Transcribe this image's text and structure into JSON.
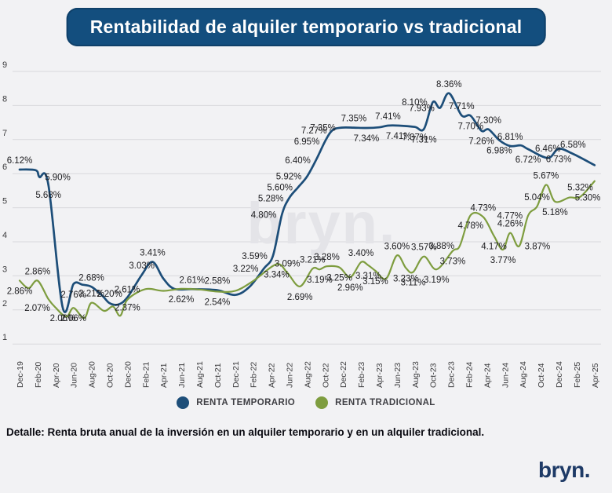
{
  "title": "Rentabilidad de alquiler temporario vs tradicional",
  "footer": {
    "label": "Detalle:",
    "text": " Renta bruta anual de la inversión en un alquiler temporario y en un alquiler tradicional."
  },
  "brand": {
    "logo": "bryn.",
    "watermark": "bryn."
  },
  "legend": [
    {
      "label": "RENTA TEMPORARIO",
      "color": "#1d4e79"
    },
    {
      "label": "RENTA TRADICIONAL",
      "color": "#7e9d3f"
    }
  ],
  "colors": {
    "background": "#f2f2f4",
    "grid": "#d8d8dc",
    "axis_text": "#3c3c3e",
    "data_label": "#1c1c1f",
    "title_bg": "#134e7e",
    "watermark": "#e4e4e8"
  },
  "chart_data": {
    "type": "line",
    "title": "Rentabilidad de alquiler temporario vs tradicional",
    "xlabel": "",
    "ylabel": "",
    "ylim": [
      1,
      9
    ],
    "y_ticks": [
      1,
      2,
      3,
      4,
      5,
      6,
      7,
      8,
      9
    ],
    "grid": "horizontal",
    "legend_position": "bottom",
    "x_ticks": [
      "Dec-19",
      "Feb-20",
      "Apr-20",
      "Jun-20",
      "Aug-20",
      "Oct-20",
      "Dec-20",
      "Feb-21",
      "Apr-21",
      "Jun-21",
      "Aug-21",
      "Oct-21",
      "Dec-21",
      "Feb-22",
      "Apr-22",
      "Jun-22",
      "Aug-22",
      "Oct-22",
      "Dec-22",
      "Feb-23",
      "Apr-23",
      "Jun-23",
      "Aug-23",
      "Oct-23",
      "Dec-23",
      "Feb-24",
      "Apr-24",
      "Jun-24",
      "Aug-24",
      "Oct-24",
      "Dec-24",
      "Feb-25",
      "Apr-25"
    ],
    "series": [
      {
        "name": "RENTA TEMPORARIO",
        "color": "#1d4e79",
        "width": 2.7,
        "points": [
          [
            0,
            6.12,
            "6.12%",
            "a"
          ],
          [
            0.9,
            6.1,
            null,
            null
          ],
          [
            1.1,
            5.9,
            "5.90%",
            "r"
          ],
          [
            1.6,
            5.68,
            "5.68%",
            "b"
          ],
          [
            2.4,
            2.06,
            "2.06%",
            "b"
          ],
          [
            3,
            2.76,
            "2.76%",
            "b"
          ],
          [
            3.5,
            2.74,
            null,
            null
          ],
          [
            4,
            2.68,
            "2.68%",
            "a"
          ],
          [
            4.6,
            2.42,
            null,
            null
          ],
          [
            5,
            2.2,
            "2.20%",
            "a"
          ],
          [
            5.5,
            2.16,
            null,
            null
          ],
          [
            6,
            2.37,
            "2.37%",
            "b"
          ],
          [
            6.8,
            3.03,
            "3.03%",
            "a"
          ],
          [
            7.4,
            3.41,
            "3.41%",
            "a"
          ],
          [
            8,
            2.92,
            null,
            null
          ],
          [
            8.6,
            2.62,
            null,
            null
          ],
          [
            9.6,
            2.61,
            "2.61%",
            "a"
          ],
          [
            11,
            2.58,
            "2.58%",
            "a"
          ],
          [
            12,
            2.44,
            null,
            null
          ],
          [
            12.8,
            2.68,
            null,
            null
          ],
          [
            13.6,
            3.22,
            "3.22%",
            "l"
          ],
          [
            14.1,
            3.59,
            "3.59%",
            "l"
          ],
          [
            14.6,
            4.8,
            "4.80%",
            "l"
          ],
          [
            15,
            5.28,
            "5.28%",
            "l"
          ],
          [
            15.5,
            5.6,
            "5.60%",
            "l"
          ],
          [
            16,
            5.92,
            "5.92%",
            "l"
          ],
          [
            16.5,
            6.4,
            "6.40%",
            "l"
          ],
          [
            17,
            6.95,
            "6.95%",
            "l"
          ],
          [
            17.4,
            7.27,
            "7.27%",
            "l"
          ],
          [
            17.9,
            7.35,
            "7.35%",
            "l"
          ],
          [
            18.6,
            7.35,
            "7.35%",
            "a"
          ],
          [
            19.3,
            7.34,
            "7.34%",
            "b"
          ],
          [
            20,
            7.36,
            null,
            null
          ],
          [
            20.5,
            7.41,
            "7.41%",
            "a"
          ],
          [
            21.1,
            7.41,
            "7.41%",
            "b"
          ],
          [
            22,
            7.37,
            "7.37%",
            "b"
          ],
          [
            22.5,
            7.31,
            "7.31%",
            "b"
          ],
          [
            23,
            8.1,
            "8.10%",
            "l"
          ],
          [
            23.4,
            7.93,
            "7.93%",
            "l"
          ],
          [
            23.9,
            8.36,
            "8.36%",
            "a"
          ],
          [
            24.6,
            7.71,
            "7.71%",
            "a"
          ],
          [
            25.1,
            7.7,
            "7.70%",
            "b"
          ],
          [
            25.7,
            7.26,
            "7.26%",
            "b"
          ],
          [
            26.1,
            7.3,
            "7.30%",
            "a"
          ],
          [
            26.7,
            6.98,
            "6.98%",
            "b"
          ],
          [
            27.3,
            6.81,
            "6.81%",
            "a"
          ],
          [
            27.9,
            6.83,
            null,
            null
          ],
          [
            28.3,
            6.72,
            "6.72%",
            "b"
          ],
          [
            29.4,
            6.46,
            "6.46%",
            "a"
          ],
          [
            30,
            6.73,
            "6.73%",
            "b"
          ],
          [
            30.8,
            6.58,
            "6.58%",
            "a"
          ],
          [
            32,
            6.25,
            null,
            null
          ]
        ]
      },
      {
        "name": "RENTA TRADICIONAL",
        "color": "#7e9d3f",
        "width": 2.2,
        "points": [
          [
            0,
            2.86,
            "2.86%",
            "b"
          ],
          [
            0.5,
            2.64,
            null,
            null
          ],
          [
            1,
            2.86,
            "2.86%",
            "a"
          ],
          [
            1.6,
            2.32,
            null,
            null
          ],
          [
            2,
            2.07,
            "2.07%",
            "l"
          ],
          [
            2.6,
            1.8,
            null,
            null
          ],
          [
            3,
            2.06,
            "2.06%",
            "b"
          ],
          [
            3.6,
            1.76,
            null,
            null
          ],
          [
            4,
            2.21,
            "2.21%",
            "a"
          ],
          [
            4.7,
            1.97,
            null,
            null
          ],
          [
            5.2,
            2.1,
            null,
            null
          ],
          [
            5.6,
            1.83,
            null,
            null
          ],
          [
            6,
            2.3,
            null,
            null
          ],
          [
            7,
            2.61,
            "2.61%",
            "l"
          ],
          [
            8,
            2.56,
            null,
            null
          ],
          [
            9,
            2.62,
            "2.62%",
            "b"
          ],
          [
            10,
            2.6,
            null,
            null
          ],
          [
            11,
            2.54,
            "2.54%",
            "b"
          ],
          [
            12,
            2.56,
            null,
            null
          ],
          [
            13,
            2.85,
            null,
            null
          ],
          [
            14.3,
            3.34,
            "3.34%",
            "b"
          ],
          [
            14.9,
            3.09,
            "3.09%",
            "a"
          ],
          [
            15.6,
            2.69,
            "2.69%",
            "b"
          ],
          [
            16.3,
            3.21,
            "3.21%",
            "a"
          ],
          [
            16.7,
            3.19,
            "3.19%",
            "b"
          ],
          [
            17.1,
            3.28,
            "3.28%",
            "a"
          ],
          [
            17.8,
            3.25,
            "3.25%",
            "b"
          ],
          [
            18.4,
            2.96,
            "2.96%",
            "b"
          ],
          [
            19,
            3.4,
            "3.40%",
            "a"
          ],
          [
            19.4,
            3.31,
            "3.31%",
            "b"
          ],
          [
            19.8,
            3.15,
            "3.15%",
            "b"
          ],
          [
            20.4,
            2.92,
            null,
            null
          ],
          [
            21,
            3.6,
            "3.60%",
            "a"
          ],
          [
            21.5,
            3.23,
            "3.23%",
            "b"
          ],
          [
            21.9,
            3.11,
            "3.11%",
            "b"
          ],
          [
            22.5,
            3.57,
            "3.57%",
            "a"
          ],
          [
            23.2,
            3.19,
            "3.19%",
            "b"
          ],
          [
            24.1,
            3.73,
            "3.73%",
            "b"
          ],
          [
            24.5,
            3.88,
            "3.88%",
            "l"
          ],
          [
            25.1,
            4.78,
            "4.78%",
            "b"
          ],
          [
            25.8,
            4.73,
            "4.73%",
            "a"
          ],
          [
            26.4,
            4.17,
            "4.17%",
            "b"
          ],
          [
            26.9,
            3.77,
            "3.77%",
            "b"
          ],
          [
            27.3,
            4.26,
            "4.26%",
            "a"
          ],
          [
            27.8,
            3.87,
            "3.87%",
            "r"
          ],
          [
            28.3,
            4.77,
            "4.77%",
            "l"
          ],
          [
            28.8,
            5.04,
            "5.04%",
            "a"
          ],
          [
            29.3,
            5.67,
            "5.67%",
            "a"
          ],
          [
            29.8,
            5.18,
            "5.18%",
            "b"
          ],
          [
            30.6,
            5.3,
            "5.30%",
            "r"
          ],
          [
            31.2,
            5.32,
            "5.32%",
            "a"
          ],
          [
            32,
            5.78,
            null,
            null
          ]
        ]
      }
    ]
  }
}
